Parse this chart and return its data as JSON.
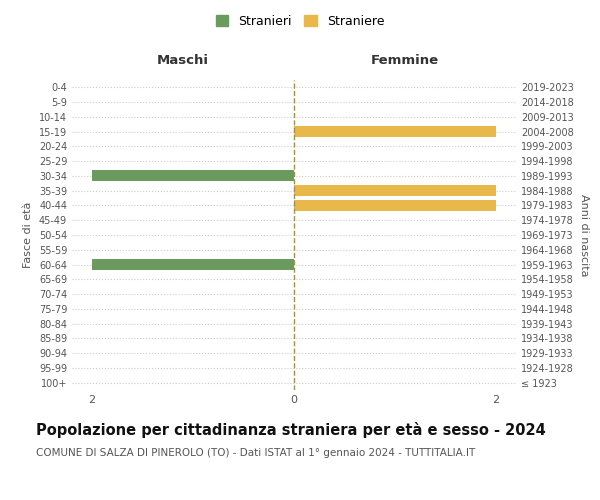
{
  "age_groups": [
    "100+",
    "95-99",
    "90-94",
    "85-89",
    "80-84",
    "75-79",
    "70-74",
    "65-69",
    "60-64",
    "55-59",
    "50-54",
    "45-49",
    "40-44",
    "35-39",
    "30-34",
    "25-29",
    "20-24",
    "15-19",
    "10-14",
    "5-9",
    "0-4"
  ],
  "birth_years": [
    "≤ 1923",
    "1924-1928",
    "1929-1933",
    "1934-1938",
    "1939-1943",
    "1944-1948",
    "1949-1953",
    "1954-1958",
    "1959-1963",
    "1964-1968",
    "1969-1973",
    "1974-1978",
    "1979-1983",
    "1984-1988",
    "1989-1993",
    "1994-1998",
    "1999-2003",
    "2004-2008",
    "2009-2013",
    "2014-2018",
    "2019-2023"
  ],
  "males": [
    0,
    0,
    0,
    0,
    0,
    0,
    0,
    0,
    -2,
    0,
    0,
    0,
    0,
    0,
    -2,
    0,
    0,
    0,
    0,
    0,
    0
  ],
  "females": [
    0,
    0,
    0,
    0,
    0,
    0,
    0,
    0,
    0,
    0,
    0,
    0,
    2,
    2,
    0,
    0,
    0,
    2,
    0,
    0,
    0
  ],
  "male_color": "#6b9a5e",
  "female_color": "#e8b84b",
  "center_line_color": "#a09050",
  "grid_color": "#cccccc",
  "title": "Popolazione per cittadinanza straniera per età e sesso - 2024",
  "subtitle": "COMUNE DI SALZA DI PINEROLO (TO) - Dati ISTAT al 1° gennaio 2024 - TUTTITALIA.IT",
  "xlabel_left": "Maschi",
  "xlabel_right": "Femmine",
  "ylabel_left": "Fasce di età",
  "ylabel_right": "Anni di nascita",
  "legend_male": "Stranieri",
  "legend_female": "Straniere",
  "xlim": [
    -2.2,
    2.2
  ],
  "xticks": [
    -2,
    0,
    2
  ],
  "background_color": "#ffffff",
  "title_fontsize": 10.5,
  "subtitle_fontsize": 7.5,
  "bar_height": 0.75
}
